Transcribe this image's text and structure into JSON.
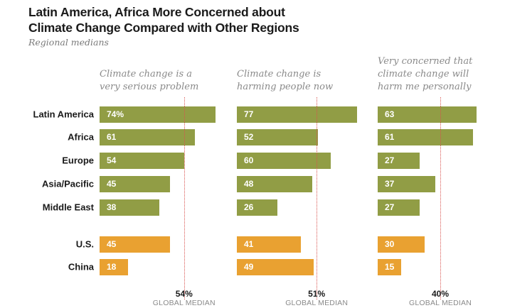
{
  "chart_data": {
    "type": "bar",
    "orientation": "horizontal",
    "title": "Latin America, Africa More Concerned about Climate Change Compared with Other Regions",
    "subtitle": "Regional medians",
    "categories": [
      "Latin America",
      "Africa",
      "Europe",
      "Asia/Pacific",
      "Middle East",
      "U.S.",
      "China"
    ],
    "category_groups": [
      "region",
      "region",
      "region",
      "region",
      "region",
      "country",
      "country"
    ],
    "colors": {
      "region": "#919d45",
      "country": "#e9a131",
      "median_line": "#d9534f"
    },
    "panels": [
      {
        "header": "Climate change is a very serious problem",
        "header_lines": [
          "Climate change is a",
          "very serious problem"
        ],
        "values": [
          74,
          61,
          54,
          45,
          38,
          45,
          18
        ],
        "labels": [
          "74%",
          "61",
          "54",
          "45",
          "38",
          "45",
          "18"
        ],
        "global_median": 54,
        "global_median_label": "54%",
        "global_median_caption": "GLOBAL MEDIAN"
      },
      {
        "header": "Climate change is harming people now",
        "header_lines": [
          "Climate change is",
          "harming people now"
        ],
        "values": [
          77,
          52,
          60,
          48,
          26,
          41,
          49
        ],
        "labels": [
          "77",
          "52",
          "60",
          "48",
          "26",
          "41",
          "49"
        ],
        "global_median": 51,
        "global_median_label": "51%",
        "global_median_caption": "GLOBAL MEDIAN"
      },
      {
        "header": "Very concerned that climate change will harm me personally",
        "header_lines": [
          "Very concerned that",
          "climate change will",
          "harm me personally"
        ],
        "values": [
          63,
          61,
          27,
          37,
          27,
          30,
          15
        ],
        "labels": [
          "63",
          "61",
          "27",
          "37",
          "27",
          "30",
          "15"
        ],
        "global_median": 40,
        "global_median_label": "40%",
        "global_median_caption": "GLOBAL MEDIAN"
      }
    ],
    "unit": "%",
    "xlim": [
      0,
      100
    ]
  }
}
